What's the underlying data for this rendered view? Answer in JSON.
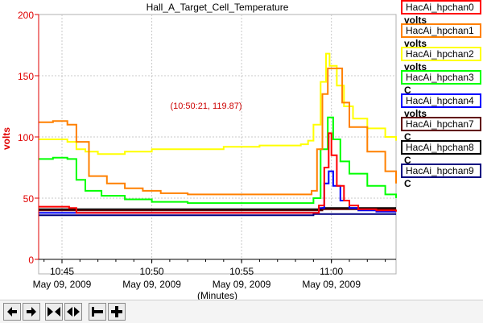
{
  "chart_data": {
    "type": "line",
    "title": "Hall_A_Target_Cell_Temperature",
    "ylabel": "volts",
    "ylabel_color": "#e00000",
    "xlabel": "(Minutes)",
    "ylim": [
      0,
      200
    ],
    "xlim": [
      43.7,
      63.6
    ],
    "yticks": [
      "0",
      "50",
      "100",
      "150",
      "200"
    ],
    "ytick_values": [
      0,
      50,
      100,
      150,
      200
    ],
    "xticks": [
      {
        "x": 45,
        "time": "10:45",
        "date": "May 09, 2009"
      },
      {
        "x": 50,
        "time": "10:50",
        "date": "May 09, 2009"
      },
      {
        "x": 55,
        "time": "10:55",
        "date": "May 09, 2009"
      },
      {
        "x": 60,
        "time": "11:00",
        "date": "May 09, 2009"
      }
    ],
    "grid": true,
    "annotation": "(10:50:21, 119.87)",
    "annotation_color": "#cc0000",
    "legend_position": "right",
    "series": [
      {
        "name": "HacAi_hpchan0",
        "unit": "volts",
        "color": "#ff0000",
        "x": [
          43.7,
          44.5,
          45.4,
          45.8,
          46.5,
          50,
          55,
          58.8,
          59.3,
          59.6,
          59.85,
          60.0,
          60.3,
          60.7,
          61.0,
          61.5,
          62.5,
          63.6
        ],
        "y": [
          43,
          43,
          42,
          38,
          38,
          38,
          38,
          38,
          44,
          75,
          103,
          85,
          60,
          48,
          44,
          41,
          40,
          39
        ]
      },
      {
        "name": "HacAi_hpchan1",
        "unit": "volts",
        "color": "#ff8000",
        "x": [
          43.7,
          44.5,
          45.3,
          45.8,
          46.5,
          47.5,
          48.5,
          49.5,
          50.5,
          52,
          54,
          56,
          58.5,
          58.9,
          59.2,
          59.5,
          59.8,
          60.2,
          60.6,
          61.0,
          62.0,
          63.0,
          63.6
        ],
        "y": [
          112,
          113,
          110,
          96,
          68,
          62,
          58,
          56,
          54,
          53,
          53,
          53,
          53,
          56,
          90,
          135,
          156,
          156,
          128,
          108,
          88,
          72,
          62
        ]
      },
      {
        "name": "HacAi_hpchan2",
        "unit": "volts",
        "color": "#ffff00",
        "x": [
          43.7,
          44.5,
          45.3,
          45.8,
          46.3,
          47.0,
          48.5,
          50.0,
          52.0,
          54.0,
          56.0,
          58.3,
          58.7,
          59.0,
          59.4,
          59.7,
          59.9,
          60.3,
          60.7,
          61.2,
          62.0,
          63.0,
          63.6
        ],
        "y": [
          98,
          98,
          96,
          90,
          88,
          86,
          88,
          90,
          90,
          92,
          93,
          94,
          97,
          110,
          145,
          168,
          158,
          142,
          125,
          115,
          107,
          100,
          97
        ]
      },
      {
        "name": "HacAi_hpchan3",
        "unit": "C",
        "color": "#00ff00",
        "x": [
          43.7,
          44.5,
          45.3,
          45.8,
          46.3,
          47.2,
          48.5,
          50.0,
          52.0,
          54.0,
          56.0,
          58.5,
          59.0,
          59.4,
          59.8,
          60.1,
          60.5,
          61.0,
          62.0,
          63.0,
          63.6
        ],
        "y": [
          82,
          83,
          82,
          65,
          56,
          52,
          49,
          47,
          46,
          46,
          46,
          46,
          50,
          90,
          116,
          98,
          80,
          70,
          60,
          53,
          50
        ]
      },
      {
        "name": "HacAi_hpchan4",
        "unit": "volts",
        "color": "#0000ff",
        "x": [
          43.7,
          45.0,
          46.0,
          50.0,
          55.0,
          58.8,
          59.3,
          59.6,
          59.85,
          60.1,
          60.5,
          61.0,
          61.5,
          62.5,
          63.6
        ],
        "y": [
          38,
          38,
          38,
          38,
          38,
          38,
          42,
          62,
          72,
          60,
          48,
          42,
          40,
          39,
          39
        ]
      },
      {
        "name": "HacAi_hpchan7",
        "unit": "C",
        "color": "#600000",
        "x": [
          43.7,
          45.0,
          46.0,
          50.0,
          55.0,
          59.0,
          59.5,
          60.0,
          63.6
        ],
        "y": [
          40,
          40,
          40,
          40,
          40,
          40,
          41,
          41,
          41
        ]
      },
      {
        "name": "HacAi_hpchan8",
        "unit": "C",
        "color": "#000000",
        "x": [
          43.7,
          45.0,
          46.0,
          50.0,
          55.0,
          59.0,
          59.5,
          60.0,
          63.6
        ],
        "y": [
          41,
          41,
          41,
          41,
          41,
          41,
          42,
          42,
          42
        ]
      },
      {
        "name": "HacAi_hpchan9",
        "unit": "C",
        "color": "#000080",
        "x": [
          43.7,
          45.0,
          46.0,
          50.0,
          55.0,
          59.0,
          59.5,
          60.0,
          63.6
        ],
        "y": [
          36,
          36,
          36,
          36,
          36,
          37,
          37,
          37,
          37
        ]
      }
    ]
  },
  "toolbar": [
    {
      "icon": "arrow-left-icon",
      "label": "scroll left"
    },
    {
      "icon": "arrow-right-icon",
      "label": "scroll right"
    },
    {
      "icon": "zoom-in-x-icon",
      "label": "zoom in"
    },
    {
      "icon": "zoom-out-x-icon",
      "label": "zoom out"
    },
    {
      "icon": "minus-icon",
      "label": "zoom out y"
    },
    {
      "icon": "plus-icon",
      "label": "zoom in y"
    }
  ]
}
